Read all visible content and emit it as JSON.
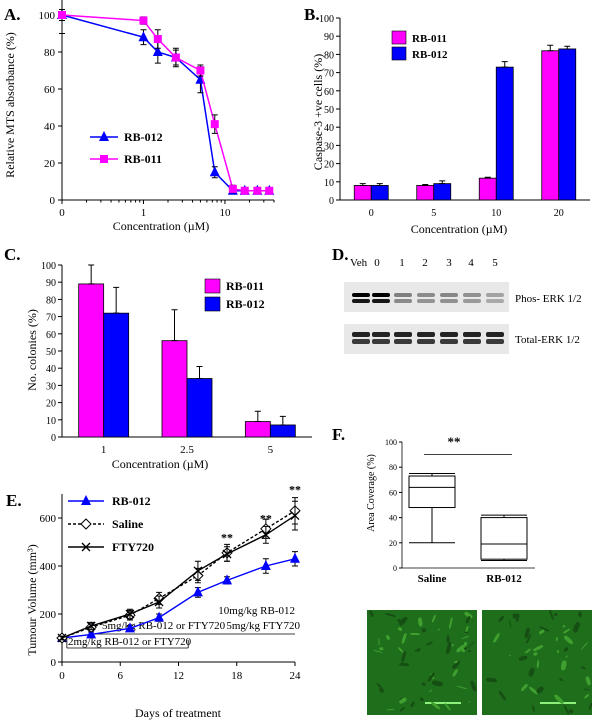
{
  "colors": {
    "rb011": "#ff00ff",
    "rb012": "#0000ff",
    "blot_bg": "#e8e8e8",
    "micrograph": "#1f6e1b"
  },
  "panels": {
    "A": {
      "letter": "A.",
      "ylabel": "Relative MTS absorbance  (%)",
      "xlabel": "Concentration (µM)"
    },
    "B": {
      "letter": "B.",
      "ylabel": "Caspase-3 +ve cells (%)",
      "xlabel": "Concentration (µM)"
    },
    "C": {
      "letter": "C.",
      "ylabel": "No. colonies (%)",
      "xlabel": "Concentration (µM)"
    },
    "D": {
      "letter": "D.",
      "lanes": [
        "Veh",
        "0",
        "1",
        "2",
        "3",
        "4",
        "5"
      ],
      "rows": [
        "Phos- ERK 1/2",
        "Total-ERK 1/2"
      ]
    },
    "E": {
      "letter": "E.",
      "ylabel": "Tumour Volume (mm³)",
      "xlabel": "Days of treatment",
      "sig": [
        "**",
        "**",
        "**"
      ],
      "dosing": [
        "10mg/kg RB-012",
        "5mg/kg RB-012 or FTY720",
        "5mg/kg FTY720",
        "2mg/kg RB-012 or FTY720"
      ]
    },
    "F": {
      "letter": "F.",
      "ylabel": "Area Coverage (%)",
      "categories": [
        "Saline",
        "RB-012"
      ],
      "sig": "**"
    }
  },
  "chart_data": [
    {
      "panel": "A",
      "type": "line",
      "xlabel": "Concentration (µM)",
      "ylabel": "Relative MTS absorbance  (%)",
      "xlim": [
        0,
        40
      ],
      "ylim": [
        0,
        100
      ],
      "xticks": [
        "0",
        "1",
        "10"
      ],
      "yticks": [
        0,
        20,
        40,
        60,
        80,
        100
      ],
      "legend": "bottom-left",
      "series": [
        {
          "name": "RB-012",
          "marker": "triangle",
          "x": [
            0,
            1,
            1.5,
            2.5,
            5,
            7.5,
            12.5,
            17.5,
            25,
            35
          ],
          "y": [
            100,
            88,
            80,
            77,
            65,
            15,
            5,
            5,
            5,
            5
          ],
          "err": [
            10,
            4,
            6,
            5,
            7,
            3,
            1,
            1,
            1,
            1
          ]
        },
        {
          "name": "RB-011",
          "marker": "square",
          "x": [
            0,
            1,
            1.5,
            2.5,
            5,
            7.5,
            12.5,
            17.5,
            25,
            35
          ],
          "y": [
            100,
            97,
            87,
            77,
            70,
            41,
            6,
            5,
            5,
            5
          ],
          "err": [
            3,
            2,
            5,
            4,
            3,
            5,
            2,
            1,
            1,
            1
          ]
        }
      ]
    },
    {
      "panel": "B",
      "type": "bar",
      "xlabel": "Concentration (µM)",
      "ylabel": "Caspase-3 +ve cells (%)",
      "categories": [
        "0",
        "5",
        "10",
        "20"
      ],
      "ylim": [
        0,
        100
      ],
      "yticks": [
        0,
        10,
        20,
        30,
        40,
        50,
        60,
        70,
        80,
        90,
        100
      ],
      "legend": "top-left",
      "series": [
        {
          "name": "RB-011",
          "values": [
            8,
            8,
            12,
            82
          ],
          "err": [
            1,
            0.5,
            0.5,
            3
          ]
        },
        {
          "name": "RB-012",
          "values": [
            8,
            9,
            73,
            83
          ],
          "err": [
            1,
            1.5,
            3,
            1.5
          ]
        }
      ]
    },
    {
      "panel": "C",
      "type": "bar",
      "xlabel": "Concentration (µM)",
      "ylabel": "No. colonies (%)",
      "categories": [
        "1",
        "2.5",
        "5"
      ],
      "ylim": [
        0,
        100
      ],
      "yticks": [
        0,
        10,
        20,
        30,
        40,
        50,
        60,
        70,
        80,
        90,
        100
      ],
      "legend": "top-right",
      "series": [
        {
          "name": "RB-011",
          "values": [
            89,
            56,
            9
          ],
          "err": [
            11,
            18,
            6
          ]
        },
        {
          "name": "RB-012",
          "values": [
            72,
            34,
            7
          ],
          "err": [
            15,
            7,
            5
          ]
        }
      ]
    },
    {
      "panel": "E",
      "type": "line",
      "xlabel": "Days of treatment",
      "ylabel": "Tumour Volume (mm³)",
      "xlim": [
        0,
        24
      ],
      "ylim": [
        0,
        700
      ],
      "xticks": [
        0,
        6,
        12,
        18,
        24
      ],
      "yticks": [
        0,
        200,
        400,
        600
      ],
      "legend": "top-left",
      "series": [
        {
          "name": "RB-012",
          "marker": "triangle",
          "x": [
            0,
            3,
            7,
            10,
            14,
            17,
            21,
            24
          ],
          "y": [
            100,
            115,
            140,
            185,
            290,
            340,
            400,
            430
          ],
          "err": [
            8,
            10,
            12,
            15,
            20,
            15,
            30,
            30
          ]
        },
        {
          "name": "Saline",
          "marker": "diamond",
          "dashed": true,
          "x": [
            0,
            3,
            7,
            10,
            14,
            17,
            21,
            24
          ],
          "y": [
            100,
            145,
            195,
            265,
            360,
            455,
            555,
            630
          ],
          "err": [
            8,
            15,
            20,
            25,
            30,
            35,
            40,
            55
          ]
        },
        {
          "name": "FTY720",
          "marker": "x",
          "x": [
            0,
            3,
            7,
            10,
            14,
            17,
            21,
            24
          ],
          "y": [
            100,
            150,
            200,
            250,
            380,
            450,
            530,
            610
          ],
          "err": [
            8,
            15,
            20,
            25,
            40,
            30,
            35,
            60
          ]
        }
      ]
    },
    {
      "panel": "F",
      "type": "box",
      "ylabel": "Area Coverage (%)",
      "ylim": [
        0,
        100
      ],
      "yticks": [
        0,
        20,
        40,
        60,
        80,
        100
      ],
      "categories": [
        "Saline",
        "RB-012"
      ],
      "boxes": [
        {
          "min": 20,
          "q1": 48,
          "median": 64,
          "q3": 73,
          "max": 75
        },
        {
          "min": 6,
          "q1": 7,
          "median": 19,
          "q3": 40,
          "max": 42
        }
      ]
    }
  ]
}
